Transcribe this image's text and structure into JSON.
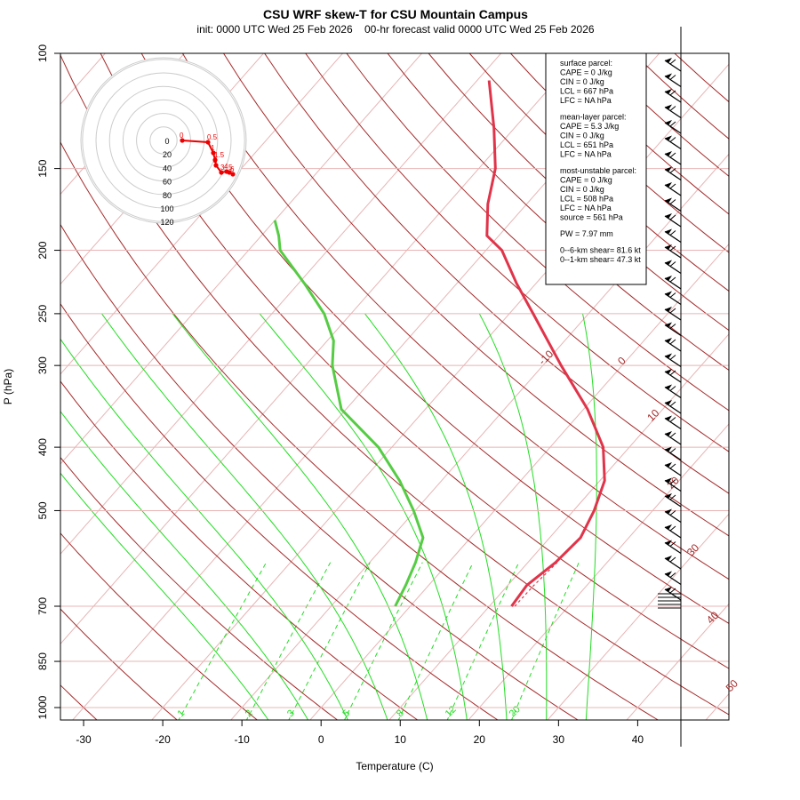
{
  "chart_data": {
    "type": "skew-t",
    "title": "CSU WRF skew-T for CSU Mountain Campus",
    "subtitle": "init: 0000 UTC Wed 25 Feb 2026    00-hr forecast valid 0000 UTC Wed 25 Feb 2026",
    "xlabel": "Temperature (C)",
    "ylabel": "P (hPa)",
    "x_ticks": [
      "-30",
      "-20",
      "-10",
      "0",
      "10",
      "20",
      "30",
      "40"
    ],
    "y_ticks": [
      "100",
      "150",
      "200",
      "250",
      "300",
      "400",
      "500",
      "700",
      "850",
      "1000"
    ],
    "isotherm_labels": [
      "-10",
      "0",
      "10",
      "20",
      "30",
      "40",
      "50"
    ],
    "mixing_ratio_labels": [
      "1",
      "2",
      "3",
      "5",
      "8",
      "12",
      "20"
    ],
    "hodograph_ring_labels": [
      "0",
      "20",
      "40",
      "60",
      "80",
      "100",
      "120"
    ],
    "hodograph_height_labels": [
      "0",
      "0.5",
      "1",
      "1.5",
      "2",
      "3",
      "4",
      "5",
      "6",
      "8"
    ],
    "temperature_profile": [
      {
        "p": 700,
        "t": 12.8
      },
      {
        "p": 650,
        "t": 12.4
      },
      {
        "p": 600,
        "t": 13.5
      },
      {
        "p": 550,
        "t": 13.9
      },
      {
        "p": 500,
        "t": 12.6
      },
      {
        "p": 450,
        "t": 10.6
      },
      {
        "p": 400,
        "t": 6.7
      },
      {
        "p": 350,
        "t": 0.5
      },
      {
        "p": 300,
        "t": -7.7
      },
      {
        "p": 250,
        "t": -17.0
      },
      {
        "p": 225,
        "t": -22.4
      },
      {
        "p": 200,
        "t": -28.0
      },
      {
        "p": 190,
        "t": -31.5
      },
      {
        "p": 170,
        "t": -34.9
      },
      {
        "p": 150,
        "t": -37.9
      },
      {
        "p": 130,
        "t": -42.6
      },
      {
        "p": 110,
        "t": -48.5
      }
    ],
    "dewpoint_profile": [
      {
        "p": 700,
        "t": -1.9
      },
      {
        "p": 650,
        "t": -2.9
      },
      {
        "p": 600,
        "t": -4.2
      },
      {
        "p": 550,
        "t": -6.0
      },
      {
        "p": 500,
        "t": -10.2
      },
      {
        "p": 450,
        "t": -15.3
      },
      {
        "p": 400,
        "t": -21.7
      },
      {
        "p": 350,
        "t": -30.6
      },
      {
        "p": 300,
        "t": -36.6
      },
      {
        "p": 275,
        "t": -39.2
      },
      {
        "p": 250,
        "t": -43.4
      },
      {
        "p": 225,
        "t": -49.2
      },
      {
        "p": 200,
        "t": -56.0
      },
      {
        "p": 190,
        "t": -57.8
      },
      {
        "p": 180,
        "t": -60.0
      }
    ],
    "parcel_profile": [
      {
        "p": 700,
        "t": 13.2
      },
      {
        "p": 650,
        "t": 13.3
      },
      {
        "p": 600,
        "t": 13.7
      }
    ],
    "info_box": [
      "surface parcel:",
      "CAPE = 0 J/kg",
      "CIN = 0 J/kg",
      "LCL = 667 hPa",
      "LFC = NA hPa",
      "",
      "mean-layer parcel:",
      "CAPE = 5.3 J/kg",
      "CIN = 0 J/kg",
      "LCL = 651 hPa",
      "LFC = NA hPa",
      "",
      "most-unstable parcel:",
      "CAPE = 0 J/kg",
      "CIN = 0 J/kg",
      "LCL = 508 hPa",
      "LFC = NA hPa",
      "source = 561 hPa",
      "",
      "PW =  7.97 mm",
      "",
      "0--6-km shear= 81.6 kt",
      "0--1-km shear= 47.3 kt"
    ],
    "grid": true,
    "legend": "top-right"
  },
  "colors": {
    "isotherm": "#e8b4b4",
    "dry_adiabat": "#a52a2a",
    "moist_adiabat": "#22dd22",
    "mixing_ratio": "#22dd22",
    "temperature": "#e0344a",
    "dewpoint": "#55cc44",
    "hodograph": "#ee0000",
    "barbs": "#000000"
  }
}
